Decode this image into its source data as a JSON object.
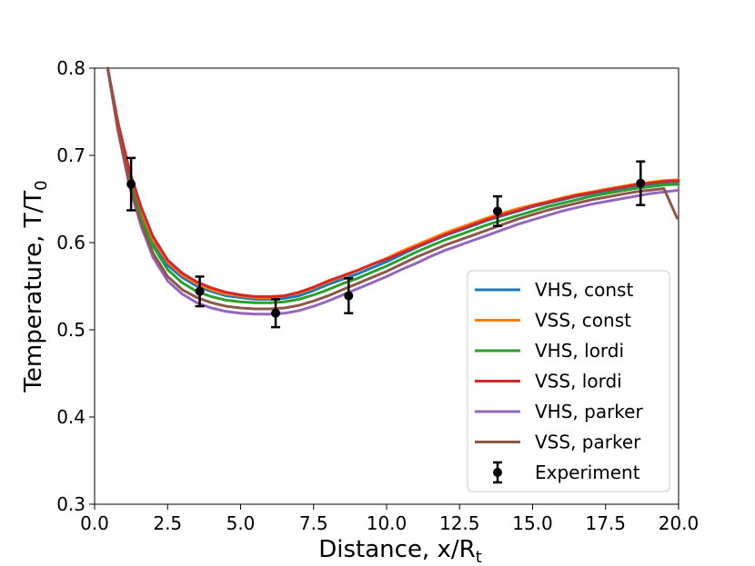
{
  "chart_data": {
    "type": "line",
    "title": "",
    "xlabel": "Distance, x/R",
    "xlabel_sub": "t",
    "ylabel": "Temperature, T/T",
    "ylabel_sub": "0",
    "xlim": [
      0.0,
      20.0
    ],
    "ylim": [
      0.3,
      0.8
    ],
    "xticks": [
      "0.0",
      "2.5",
      "5.0",
      "7.5",
      "10.0",
      "12.5",
      "15.0",
      "17.5",
      "20.0"
    ],
    "yticks": [
      "0.3",
      "0.4",
      "0.5",
      "0.6",
      "0.7",
      "0.8"
    ],
    "legend_position": "lower-right",
    "series": [
      {
        "name": "VHS, const",
        "color": "#1f77b4",
        "x": [
          0.45,
          0.8,
          1.2,
          1.6,
          2.0,
          2.5,
          3.0,
          3.5,
          4.0,
          4.5,
          5.0,
          5.5,
          6.0,
          6.5,
          7.0,
          7.5,
          8.0,
          8.5,
          9.0,
          9.5,
          10.0,
          10.5,
          11.0,
          11.5,
          12.0,
          12.5,
          13.0,
          13.5,
          14.0,
          14.5,
          15.0,
          15.5,
          16.0,
          16.5,
          17.0,
          17.5,
          18.0,
          18.5,
          19.0,
          19.5,
          20.0
        ],
        "y": [
          0.8,
          0.735,
          0.675,
          0.633,
          0.6,
          0.574,
          0.56,
          0.55,
          0.544,
          0.539,
          0.537,
          0.535,
          0.535,
          0.536,
          0.539,
          0.545,
          0.552,
          0.558,
          0.564,
          0.571,
          0.578,
          0.586,
          0.594,
          0.601,
          0.608,
          0.614,
          0.62,
          0.626,
          0.631,
          0.636,
          0.641,
          0.645,
          0.649,
          0.653,
          0.656,
          0.659,
          0.662,
          0.665,
          0.667,
          0.669,
          0.67
        ]
      },
      {
        "name": "VSS, const",
        "color": "#ff7f0e",
        "x": [
          0.45,
          0.8,
          1.2,
          1.6,
          2.0,
          2.5,
          3.0,
          3.5,
          4.0,
          4.5,
          5.0,
          5.5,
          6.0,
          6.5,
          7.0,
          7.5,
          8.0,
          8.5,
          9.0,
          9.5,
          10.0,
          10.5,
          11.0,
          11.5,
          12.0,
          12.5,
          13.0,
          13.5,
          14.0,
          14.5,
          15.0,
          15.5,
          16.0,
          16.5,
          17.0,
          17.5,
          18.0,
          18.5,
          19.0,
          19.5,
          20.0
        ],
        "y": [
          0.8,
          0.737,
          0.679,
          0.637,
          0.604,
          0.578,
          0.563,
          0.553,
          0.546,
          0.541,
          0.539,
          0.537,
          0.537,
          0.539,
          0.542,
          0.548,
          0.555,
          0.561,
          0.568,
          0.575,
          0.582,
          0.59,
          0.597,
          0.604,
          0.611,
          0.617,
          0.623,
          0.629,
          0.634,
          0.639,
          0.643,
          0.647,
          0.651,
          0.655,
          0.658,
          0.661,
          0.664,
          0.667,
          0.669,
          0.671,
          0.672
        ]
      },
      {
        "name": "VHS, lordi",
        "color": "#2ca02c",
        "x": [
          0.45,
          0.8,
          1.2,
          1.6,
          2.0,
          2.5,
          3.0,
          3.5,
          4.0,
          4.5,
          5.0,
          5.5,
          6.0,
          6.5,
          7.0,
          7.5,
          8.0,
          8.5,
          9.0,
          9.5,
          10.0,
          10.5,
          11.0,
          11.5,
          12.0,
          12.5,
          13.0,
          13.5,
          14.0,
          14.5,
          15.0,
          15.5,
          16.0,
          16.5,
          17.0,
          17.5,
          18.0,
          18.5,
          19.0,
          19.5,
          20.0
        ],
        "y": [
          0.8,
          0.733,
          0.672,
          0.629,
          0.596,
          0.569,
          0.554,
          0.544,
          0.538,
          0.534,
          0.532,
          0.531,
          0.531,
          0.532,
          0.535,
          0.54,
          0.546,
          0.553,
          0.559,
          0.566,
          0.573,
          0.581,
          0.589,
          0.596,
          0.603,
          0.609,
          0.615,
          0.621,
          0.626,
          0.631,
          0.636,
          0.641,
          0.645,
          0.649,
          0.653,
          0.656,
          0.659,
          0.662,
          0.664,
          0.666,
          0.667
        ]
      },
      {
        "name": "VSS, lordi",
        "color": "#d62728",
        "x": [
          0.45,
          0.8,
          1.2,
          1.6,
          2.0,
          2.5,
          3.0,
          3.5,
          4.0,
          4.5,
          5.0,
          5.5,
          6.0,
          6.5,
          7.0,
          7.5,
          8.0,
          8.5,
          9.0,
          9.5,
          10.0,
          10.5,
          11.0,
          11.5,
          12.0,
          12.5,
          13.0,
          13.5,
          14.0,
          14.5,
          15.0,
          15.5,
          16.0,
          16.5,
          17.0,
          17.5,
          18.0,
          18.5,
          19.0,
          19.5,
          20.0
        ],
        "y": [
          0.8,
          0.738,
          0.682,
          0.64,
          0.607,
          0.58,
          0.565,
          0.555,
          0.548,
          0.543,
          0.54,
          0.538,
          0.538,
          0.539,
          0.543,
          0.549,
          0.556,
          0.562,
          0.568,
          0.575,
          0.581,
          0.588,
          0.595,
          0.602,
          0.609,
          0.615,
          0.621,
          0.627,
          0.632,
          0.637,
          0.642,
          0.646,
          0.65,
          0.654,
          0.657,
          0.66,
          0.663,
          0.666,
          0.668,
          0.67,
          0.671
        ]
      },
      {
        "name": "VHS, parker",
        "color": "#9467bd",
        "x": [
          0.45,
          0.8,
          1.2,
          1.6,
          2.0,
          2.5,
          3.0,
          3.5,
          4.0,
          4.5,
          5.0,
          5.5,
          6.0,
          6.5,
          7.0,
          7.5,
          8.0,
          8.5,
          9.0,
          9.5,
          10.0,
          10.5,
          11.0,
          11.5,
          12.0,
          12.5,
          13.0,
          13.5,
          14.0,
          14.5,
          15.0,
          15.5,
          16.0,
          16.5,
          17.0,
          17.5,
          18.0,
          18.5,
          19.0,
          19.5,
          20.0
        ],
        "y": [
          0.8,
          0.728,
          0.664,
          0.618,
          0.583,
          0.556,
          0.541,
          0.531,
          0.525,
          0.521,
          0.519,
          0.518,
          0.518,
          0.519,
          0.522,
          0.527,
          0.533,
          0.54,
          0.547,
          0.554,
          0.561,
          0.569,
          0.576,
          0.584,
          0.591,
          0.597,
          0.603,
          0.609,
          0.615,
          0.621,
          0.626,
          0.631,
          0.636,
          0.64,
          0.644,
          0.647,
          0.65,
          0.653,
          0.656,
          0.658,
          0.66
        ]
      },
      {
        "name": "VSS, parker",
        "color": "#8c564b",
        "x": [
          0.45,
          0.8,
          1.2,
          1.6,
          2.0,
          2.5,
          3.0,
          3.5,
          4.0,
          4.5,
          5.0,
          5.5,
          6.0,
          6.5,
          7.0,
          7.5,
          8.0,
          8.5,
          9.0,
          9.5,
          10.0,
          10.5,
          11.0,
          11.5,
          12.0,
          12.5,
          13.0,
          13.5,
          14.0,
          14.5,
          15.0,
          15.5,
          16.0,
          16.5,
          17.0,
          17.5,
          18.0,
          18.5,
          19.0,
          19.5,
          19.95
        ],
        "y": [
          0.8,
          0.73,
          0.667,
          0.622,
          0.588,
          0.561,
          0.546,
          0.537,
          0.531,
          0.527,
          0.525,
          0.524,
          0.524,
          0.525,
          0.528,
          0.533,
          0.539,
          0.546,
          0.553,
          0.56,
          0.567,
          0.575,
          0.583,
          0.59,
          0.597,
          0.603,
          0.609,
          0.615,
          0.621,
          0.627,
          0.632,
          0.637,
          0.641,
          0.645,
          0.649,
          0.652,
          0.655,
          0.658,
          0.66,
          0.662,
          0.628
        ]
      }
    ],
    "experiment": {
      "name": "Experiment",
      "color": "#000000",
      "x": [
        1.25,
        3.6,
        6.2,
        8.7,
        13.8,
        18.7
      ],
      "y": [
        0.667,
        0.544,
        0.519,
        0.539,
        0.636,
        0.668
      ],
      "yerr": [
        0.03,
        0.017,
        0.016,
        0.02,
        0.017,
        0.025
      ]
    }
  }
}
